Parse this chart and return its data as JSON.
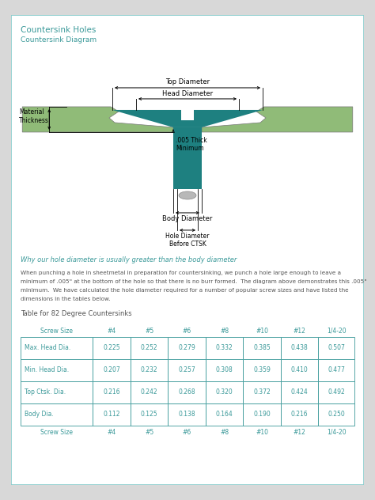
{
  "title": "Countersink Holes",
  "subtitle": "Countersink Diagram",
  "heading_color": "#3a9999",
  "border_color": "#88cccc",
  "bg_color": "#ffffff",
  "page_bg": "#d8d8d8",
  "body_text": "Why our hole diameter is usually greater than the body diameter",
  "para_lines": [
    "When punching a hole in sheetmetal in preparation for countersinking, we punch a hole large enough to leave a",
    "minimum of .005\" at the bottom of the hole so that there is no burr formed.  The diagram above demonstrates this .005\"",
    "minimum.  We have calculated the hole diameter required for a number of popular screw sizes and have listed the",
    "dimensions in the tables below."
  ],
  "table_heading": "Table for 82 Degree Countersinks",
  "col_headers": [
    "Screw Size",
    "#4",
    "#5",
    "#6",
    "#8",
    "#10",
    "#12",
    "1/4-20"
  ],
  "row_labels": [
    "Max. Head Dia.",
    "Min. Head Dia.",
    "Top Ctsk. Dia.",
    "Body Dia."
  ],
  "table_data": [
    [
      0.225,
      0.252,
      0.279,
      0.332,
      0.385,
      0.438,
      0.507
    ],
    [
      0.207,
      0.232,
      0.257,
      0.308,
      0.359,
      0.41,
      0.477
    ],
    [
      0.216,
      0.242,
      0.268,
      0.32,
      0.372,
      0.424,
      0.492
    ],
    [
      0.112,
      0.125,
      0.138,
      0.164,
      0.19,
      0.216,
      0.25
    ]
  ],
  "teal_dark": "#1e8080",
  "green_light": "#90bb78",
  "gray_burr": "#b8b8b8",
  "table_border": "#3a9999",
  "table_text": "#3a9999",
  "text_color": "#555555",
  "font_name": "DejaVu Sans"
}
